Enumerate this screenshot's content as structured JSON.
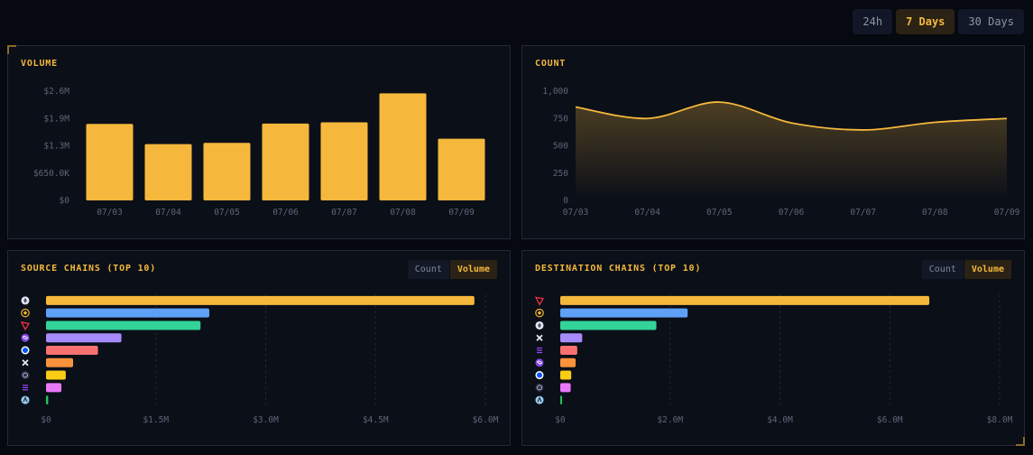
{
  "time_range": {
    "options": [
      "24h",
      "7 Days",
      "30 Days"
    ],
    "selected": "7 Days"
  },
  "panels": {
    "volume": {
      "title": "VOLUME"
    },
    "count": {
      "title": "COUNT"
    },
    "source": {
      "title": "SOURCE CHAINS (TOP 10)",
      "toggle": [
        "Count",
        "Volume"
      ],
      "selected": "Volume"
    },
    "destination": {
      "title": "DESTINATION CHAINS (TOP 10)",
      "toggle": [
        "Count",
        "Volume"
      ],
      "selected": "Volume"
    }
  },
  "colors": {
    "accent": "#f5b83c",
    "series": [
      "#f5b83c",
      "#5ea0f5",
      "#34d399",
      "#a78bfa",
      "#f87171",
      "#fb923c",
      "#facc15",
      "#e879f9",
      "#22c55e"
    ]
  },
  "chart_data": [
    {
      "type": "bar",
      "title": "VOLUME",
      "categories": [
        "07/03",
        "07/04",
        "07/05",
        "07/06",
        "07/07",
        "07/08",
        "07/09"
      ],
      "values": [
        1820000,
        1340000,
        1370000,
        1830000,
        1860000,
        2550000,
        1470000
      ],
      "yticks": [
        0,
        650000,
        1300000,
        1950000,
        2600000
      ],
      "ytick_labels": [
        "$0",
        "$650.0K",
        "$1.3M",
        "$1.9M",
        "$2.6M"
      ],
      "ylim": [
        0,
        2600000
      ],
      "color": "#f5b83c",
      "grid": false
    },
    {
      "type": "area",
      "title": "COUNT",
      "categories": [
        "07/03",
        "07/04",
        "07/05",
        "07/06",
        "07/07",
        "07/08",
        "07/09"
      ],
      "values": [
        855,
        750,
        900,
        710,
        645,
        715,
        750
      ],
      "yticks": [
        0,
        250,
        500,
        750,
        1000
      ],
      "ytick_labels": [
        "0",
        "250",
        "500",
        "750",
        "1,000"
      ],
      "ylim": [
        0,
        1000
      ],
      "color": "#f5b83c",
      "grid": false
    },
    {
      "type": "bar",
      "orientation": "horizontal",
      "title": "SOURCE CHAINS (TOP 10)",
      "icons": [
        "ethereum-icon",
        "bnb-icon",
        "tron-icon",
        "polygon-icon",
        "base-icon",
        "x-chain-icon",
        "cosmos-icon",
        "solana-icon",
        "arbitrum-icon"
      ],
      "values": [
        5850000,
        2230000,
        2110000,
        1030000,
        710000,
        370000,
        270000,
        210000,
        30000
      ],
      "xticks": [
        0,
        1500000,
        3000000,
        4500000,
        6000000
      ],
      "xtick_labels": [
        "$0",
        "$1.5M",
        "$3.0M",
        "$4.5M",
        "$6.0M"
      ],
      "xlim": [
        0,
        6000000
      ],
      "grid": true
    },
    {
      "type": "bar",
      "orientation": "horizontal",
      "title": "DESTINATION CHAINS (TOP 10)",
      "icons": [
        "tron-icon",
        "bnb-icon",
        "ethereum-icon",
        "x-chain-icon",
        "solana-icon",
        "polygon-icon",
        "base-icon",
        "cosmos-icon",
        "arbitrum-icon"
      ],
      "values": [
        6720000,
        2320000,
        1750000,
        400000,
        310000,
        280000,
        200000,
        190000,
        0
      ],
      "xticks": [
        0,
        2000000,
        4000000,
        6000000,
        8000000
      ],
      "xtick_labels": [
        "$0",
        "$2.0M",
        "$4.0M",
        "$6.0M",
        "$8.0M"
      ],
      "xlim": [
        0,
        8000000
      ],
      "grid": true
    }
  ]
}
